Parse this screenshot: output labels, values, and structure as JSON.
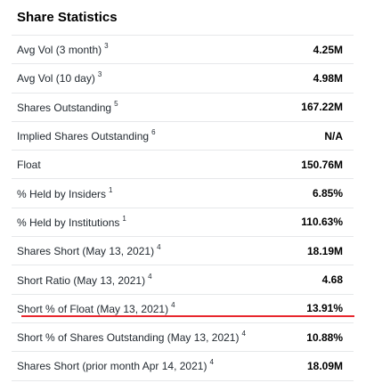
{
  "section": {
    "title": "Share Statistics"
  },
  "rows": [
    {
      "label": "Avg Vol (3 month)",
      "note": "3",
      "value": "4.25M"
    },
    {
      "label": "Avg Vol (10 day)",
      "note": "3",
      "value": "4.98M"
    },
    {
      "label": "Shares Outstanding",
      "note": "5",
      "value": "167.22M"
    },
    {
      "label": "Implied Shares Outstanding",
      "note": "6",
      "value": "N/A"
    },
    {
      "label": "Float",
      "note": "",
      "value": "150.76M"
    },
    {
      "label": "% Held by Insiders",
      "note": "1",
      "value": "6.85%"
    },
    {
      "label": "% Held by Institutions",
      "note": "1",
      "value": "110.63%"
    },
    {
      "label": "Shares Short (May 13, 2021)",
      "note": "4",
      "value": "18.19M"
    },
    {
      "label": "Short Ratio (May 13, 2021)",
      "note": "4",
      "value": "4.68"
    },
    {
      "label": "Short % of Float (May 13, 2021)",
      "note": "4",
      "value": "13.91%"
    },
    {
      "label": "Short % of Shares Outstanding (May 13, 2021)",
      "note": "4",
      "value": "10.88%"
    },
    {
      "label": "Shares Short (prior month Apr 14, 2021)",
      "note": "4",
      "value": "18.09M"
    }
  ],
  "colors": {
    "annotation_line": "#e8262d",
    "divider": "#e6e8ea"
  }
}
